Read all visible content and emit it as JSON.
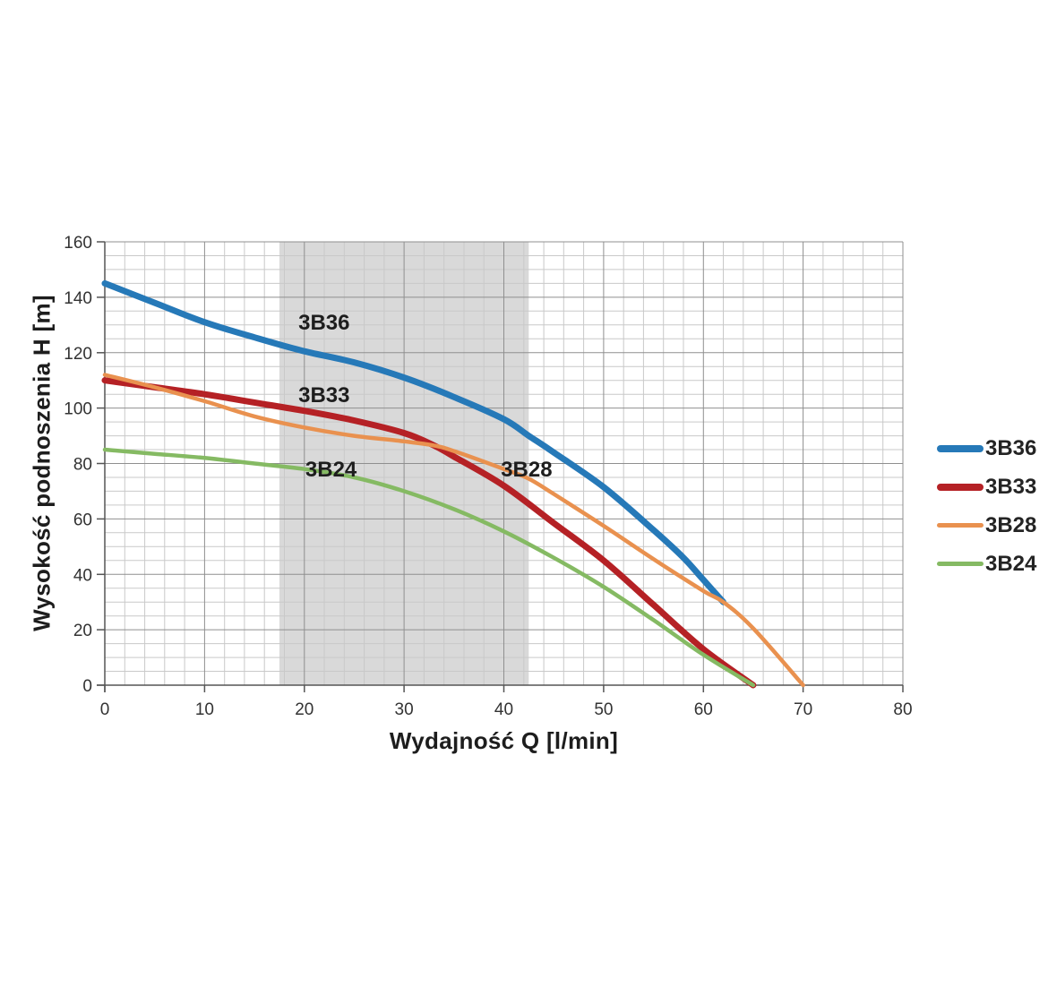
{
  "page": {
    "background": "#ffffff"
  },
  "chart_data": {
    "type": "line",
    "title": "",
    "xlabel": "Wydajność Q [l/min]",
    "ylabel": "Wysokość podnoszenia H [m]",
    "xlim": [
      0,
      80
    ],
    "ylim": [
      0,
      160
    ],
    "x_ticks": [
      0,
      10,
      20,
      30,
      40,
      50,
      60,
      70,
      80
    ],
    "y_ticks": [
      0,
      20,
      40,
      60,
      80,
      100,
      120,
      140,
      160
    ],
    "x_minor_step": 2,
    "y_minor_step": 5,
    "grid": true,
    "legend_position": "right-middle",
    "shaded_band": {
      "x_from": 17.5,
      "x_to": 42.5,
      "color": "#d9d9d9"
    },
    "series": [
      {
        "name": "3B36",
        "color": "#2679b8",
        "line_width": 7,
        "points": [
          [
            0,
            145
          ],
          [
            5,
            138
          ],
          [
            10,
            131
          ],
          [
            15,
            125.5
          ],
          [
            20,
            120.5
          ],
          [
            25,
            116.5
          ],
          [
            30,
            111
          ],
          [
            35,
            104
          ],
          [
            40,
            96
          ],
          [
            42.5,
            90
          ],
          [
            45,
            84
          ],
          [
            50,
            71.5
          ],
          [
            55,
            56
          ],
          [
            58,
            46
          ],
          [
            60,
            38
          ],
          [
            62,
            30
          ]
        ]
      },
      {
        "name": "3B33",
        "color": "#b52125",
        "line_width": 7,
        "points": [
          [
            0,
            110
          ],
          [
            5,
            107.5
          ],
          [
            10,
            105
          ],
          [
            15,
            102
          ],
          [
            20,
            99
          ],
          [
            25,
            95.5
          ],
          [
            30,
            91
          ],
          [
            33,
            86.5
          ],
          [
            35,
            82.5
          ],
          [
            40,
            72
          ],
          [
            45,
            58.5
          ],
          [
            50,
            45
          ],
          [
            55,
            29
          ],
          [
            60,
            13
          ],
          [
            65,
            0
          ]
        ]
      },
      {
        "name": "3B28",
        "color": "#e9914f",
        "line_width": 4.5,
        "points": [
          [
            0,
            112
          ],
          [
            5,
            107.5
          ],
          [
            10,
            102.5
          ],
          [
            15,
            97
          ],
          [
            20,
            93
          ],
          [
            25,
            90
          ],
          [
            30,
            88
          ],
          [
            33,
            86.5
          ],
          [
            35,
            84.5
          ],
          [
            40,
            78
          ],
          [
            42.5,
            74.5
          ],
          [
            45,
            69
          ],
          [
            50,
            57.5
          ],
          [
            55,
            45.5
          ],
          [
            60,
            34
          ],
          [
            62,
            30
          ],
          [
            65,
            20.5
          ],
          [
            70,
            0
          ]
        ]
      },
      {
        "name": "3B24",
        "color": "#85ba63",
        "line_width": 4.5,
        "points": [
          [
            0,
            85
          ],
          [
            5,
            83.5
          ],
          [
            10,
            82
          ],
          [
            15,
            80
          ],
          [
            20,
            78
          ],
          [
            25,
            75
          ],
          [
            30,
            70
          ],
          [
            35,
            63.5
          ],
          [
            40,
            55.5
          ],
          [
            45,
            46
          ],
          [
            50,
            35.5
          ],
          [
            55,
            23.5
          ],
          [
            60,
            11
          ],
          [
            65,
            0
          ]
        ]
      }
    ],
    "curve_labels": [
      {
        "text": "3B36",
        "x": 19.4,
        "y": 128.3
      },
      {
        "text": "3B33",
        "x": 19.4,
        "y": 102.1
      },
      {
        "text": "3B24",
        "x": 20.1,
        "y": 75.3
      },
      {
        "text": "3B28",
        "x": 39.7,
        "y": 75.3
      }
    ],
    "legend_entries": [
      "3B36",
      "3B33",
      "3B28",
      "3B24"
    ]
  },
  "colors": {
    "grid_minor": "#c9c9c9",
    "grid_major": "#8f8f8f",
    "axis": "#555555",
    "tick_label": "#333333",
    "text": "#1d1d1d"
  }
}
